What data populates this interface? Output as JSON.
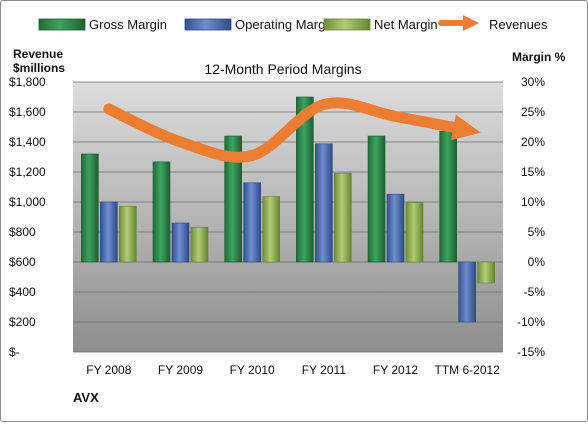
{
  "chart_data": {
    "type": "bar",
    "title": "12-Month Period Margins",
    "left_axis_label": [
      "Revenue",
      "$millions"
    ],
    "right_axis_label": "Margin %",
    "company": "AVX",
    "categories": [
      "FY 2008",
      "FY 2009",
      "FY 2010",
      "FY 2011",
      "FY 2012",
      "TTM 6-2012"
    ],
    "left_axis": {
      "min": 0,
      "max": 1800,
      "step": 200,
      "tick_labels": [
        "$-",
        "$200",
        "$400",
        "$600",
        "$800",
        "$1,000",
        "$1,200",
        "$1,400",
        "$1,600",
        "$1,800"
      ]
    },
    "right_axis": {
      "min": -15,
      "max": 30,
      "step": 5,
      "tick_labels": [
        "-15%",
        "-10%",
        "-5%",
        "0%",
        "5%",
        "10%",
        "15%",
        "20%",
        "25%",
        "30%"
      ]
    },
    "series": [
      {
        "name": "Gross Margin",
        "axis": "right",
        "kind": "bar",
        "color": "#2e8b4f",
        "values": [
          18.0,
          16.7,
          21.0,
          27.5,
          21.0,
          21.8
        ]
      },
      {
        "name": "Operating Margin",
        "axis": "right",
        "kind": "bar",
        "color": "#4f6fb5",
        "values": [
          10.0,
          6.5,
          13.2,
          19.7,
          11.3,
          -10.0
        ]
      },
      {
        "name": "Net Margin",
        "axis": "right",
        "kind": "bar",
        "color": "#8fb050",
        "values": [
          9.3,
          5.8,
          10.9,
          14.8,
          9.9,
          -3.5
        ]
      },
      {
        "name": "Revenues",
        "axis": "left",
        "kind": "line",
        "color": "#ed7d31",
        "values": [
          1620,
          1400,
          1310,
          1650,
          1570,
          1480
        ]
      }
    ],
    "grid": true,
    "legend": "top"
  }
}
